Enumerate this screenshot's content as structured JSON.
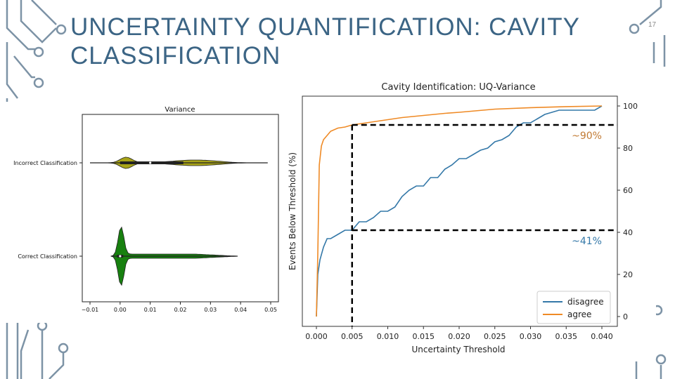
{
  "slide": {
    "title_line1": "UNCERTAINTY QUANTIFICATION: CAVITY",
    "title_line2": "CLASSIFICATION",
    "page_number": "17",
    "accent_color": "#3c6585"
  },
  "chart_data": [
    {
      "type": "violin",
      "title": "Variance",
      "categories": [
        "Incorrect Classification",
        "Correct Classification"
      ],
      "colors": [
        "#a8a418",
        "#17800f"
      ],
      "xlim": [
        -0.01,
        0.05
      ],
      "xticks": [
        "−0.01",
        "0.00",
        "0.01",
        "0.02",
        "0.03",
        "0.04",
        "0.05"
      ],
      "series": [
        {
          "category": "Incorrect Classification",
          "min": -0.01,
          "max": 0.049,
          "q1": 0.0,
          "median": 0.01,
          "q3": 0.021
        },
        {
          "category": "Correct Classification",
          "min": -0.003,
          "max": 0.039,
          "q1": -0.001,
          "median": 0.0,
          "q3": 0.001
        }
      ]
    },
    {
      "type": "line",
      "title": "Cavity Identification: UQ-Variance",
      "xlabel": "Uncertainty Threshold",
      "ylabel": "Events Below Threshold (%)",
      "xlim": [
        0.0,
        0.04
      ],
      "ylim": [
        0,
        100
      ],
      "xticks": [
        "0.000",
        "0.005",
        "0.010",
        "0.015",
        "0.020",
        "0.025",
        "0.030",
        "0.035",
        "0.040"
      ],
      "yticks": [
        "0",
        "20",
        "40",
        "60",
        "80",
        "100"
      ],
      "legend_position": "lower-right",
      "series": [
        {
          "name": "disagree",
          "color": "#3478a8",
          "x": [
            0,
            0.0002,
            0.0005,
            0.001,
            0.0015,
            0.002,
            0.003,
            0.004,
            0.005,
            0.006,
            0.007,
            0.008,
            0.009,
            0.01,
            0.011,
            0.012,
            0.013,
            0.014,
            0.015,
            0.016,
            0.017,
            0.018,
            0.019,
            0.02,
            0.021,
            0.022,
            0.023,
            0.024,
            0.025,
            0.026,
            0.027,
            0.028,
            0.029,
            0.03,
            0.031,
            0.032,
            0.033,
            0.034,
            0.035,
            0.036,
            0.037,
            0.038,
            0.039,
            0.04
          ],
          "y": [
            0,
            20,
            27,
            33,
            37,
            37,
            39,
            41,
            41,
            45,
            45,
            47,
            50,
            50,
            52,
            57,
            60,
            62,
            62,
            66,
            66,
            70,
            72,
            75,
            75,
            77,
            79,
            80,
            83,
            84,
            86,
            90,
            92,
            92,
            94,
            96,
            97,
            98,
            98,
            98,
            98,
            98,
            98,
            100
          ]
        },
        {
          "name": "agree",
          "color": "#ef8a25",
          "x": [
            0,
            0.0002,
            0.0004,
            0.0007,
            0.001,
            0.0015,
            0.002,
            0.003,
            0.004,
            0.005,
            0.006,
            0.008,
            0.01,
            0.012,
            0.015,
            0.018,
            0.02,
            0.025,
            0.03,
            0.035,
            0.04
          ],
          "y": [
            0,
            30,
            72,
            81,
            84,
            86,
            88,
            89.5,
            90,
            91,
            91.5,
            92.5,
            93.5,
            94.5,
            95.5,
            96.5,
            97,
            98.5,
            99.2,
            99.7,
            100
          ]
        }
      ],
      "annotations": [
        {
          "text": "~90%",
          "y": 91,
          "x_from": 0.005,
          "color": "#c17a33"
        },
        {
          "text": "~41%",
          "y": 41,
          "x_from": 0.005,
          "color": "#3478a8"
        }
      ],
      "threshold_line_x": 0.005
    }
  ]
}
